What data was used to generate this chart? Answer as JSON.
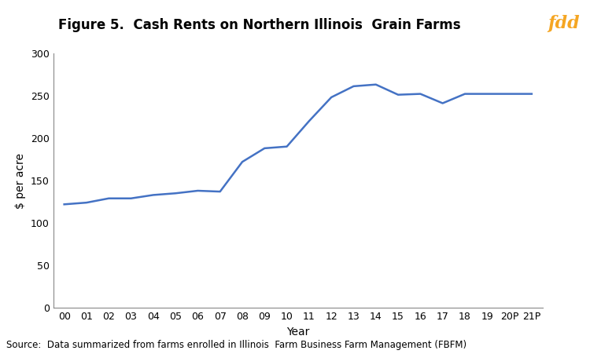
{
  "title": "Figure 5.  Cash Rents on Northern Illinois  Grain Farms",
  "xlabel": "Year",
  "ylabel": "$ per acre",
  "x_labels": [
    "00",
    "01",
    "02",
    "03",
    "04",
    "05",
    "06",
    "07",
    "08",
    "09",
    "10",
    "11",
    "12",
    "13",
    "14",
    "15",
    "16",
    "17",
    "18",
    "19",
    "20P",
    "21P"
  ],
  "values": [
    122,
    124,
    129,
    129,
    133,
    135,
    138,
    137,
    172,
    188,
    190,
    220,
    248,
    261,
    263,
    251,
    252,
    241,
    252,
    252,
    252,
    252
  ],
  "line_color": "#4472C4",
  "line_width": 1.8,
  "ylim": [
    0,
    300
  ],
  "yticks": [
    0,
    50,
    100,
    150,
    200,
    250,
    300
  ],
  "source_text": "Source:  Data summarized from farms enrolled in Illinois  Farm Business Farm Management (FBFM)",
  "fdd_bg_color": "#2E3170",
  "fdd_text_color": "#F5A623",
  "fdd_text": "fdd",
  "background_color": "#FFFFFF",
  "title_fontsize": 12,
  "axis_label_fontsize": 10,
  "tick_fontsize": 9,
  "source_fontsize": 8.5,
  "fdd_fontsize": 16
}
